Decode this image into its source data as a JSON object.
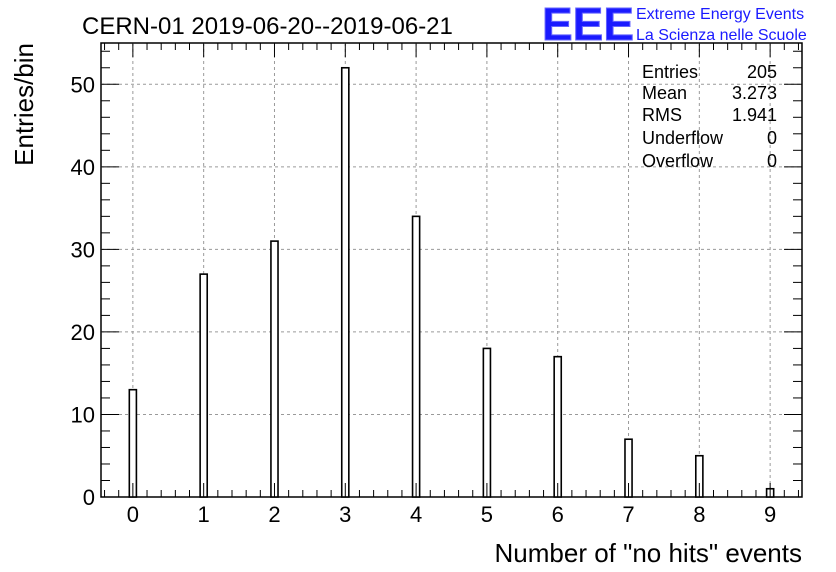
{
  "logo": {
    "text": "EEE",
    "line1": "Extreme Energy Events",
    "line2": "La Scienza nelle Scuole",
    "color": "#1a1aff"
  },
  "stats": {
    "labels": {
      "entries": "Entries",
      "mean": "Mean",
      "rms": "RMS",
      "underflow": "Underflow",
      "overflow": "Overflow"
    },
    "values": {
      "entries": "205",
      "mean": "3.273",
      "rms": "1.941",
      "underflow": "0",
      "overflow": "0"
    }
  },
  "chart_data": {
    "type": "bar",
    "title": "CERN-01 2019-06-20--2019-06-21",
    "xlabel": "Number of \"no hits\" events",
    "ylabel": "Entries/bin",
    "categories": [
      "0",
      "1",
      "2",
      "3",
      "4",
      "5",
      "6",
      "7",
      "8",
      "9"
    ],
    "values": [
      13,
      27,
      31,
      52,
      34,
      18,
      17,
      7,
      5,
      1
    ],
    "xlim": [
      -0.45,
      9.45
    ],
    "ylim": [
      0,
      55
    ],
    "yticks": [
      "0",
      "10",
      "20",
      "30",
      "40",
      "50"
    ],
    "grid": true,
    "legend": "top-right"
  }
}
